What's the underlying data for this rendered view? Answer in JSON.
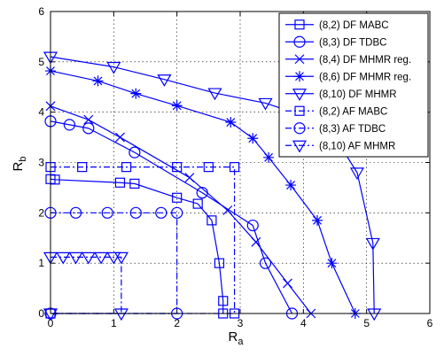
{
  "chart_data": {
    "type": "line",
    "title": "",
    "xlabel": "R",
    "xlabel_sub": "a",
    "ylabel": "R",
    "ylabel_sub": "b",
    "xlim": [
      0,
      6
    ],
    "ylim": [
      0,
      6
    ],
    "xticks": [
      0,
      1,
      2,
      3,
      4,
      5,
      6
    ],
    "yticks": [
      0,
      1,
      2,
      3,
      4,
      5,
      6
    ],
    "grid": "on",
    "legend_position": "top-right",
    "series": [
      {
        "name": "(8,2) DF MABC",
        "color": "#0000ff",
        "dash": "solid",
        "marker": "square",
        "points": [
          [
            0,
            2.67
          ],
          [
            0.07,
            2.66
          ],
          [
            1.1,
            2.6
          ],
          [
            1.33,
            2.58
          ],
          [
            2.0,
            2.3
          ],
          [
            2.33,
            2.18
          ],
          [
            2.55,
            1.85
          ],
          [
            2.67,
            1.0
          ],
          [
            2.73,
            0.25
          ],
          [
            2.73,
            0
          ]
        ]
      },
      {
        "name": "(8,3) DF TDBC",
        "color": "#0000ff",
        "dash": "solid",
        "marker": "circle",
        "points": [
          [
            0,
            3.82
          ],
          [
            0.3,
            3.75
          ],
          [
            0.6,
            3.68
          ],
          [
            1.33,
            3.2
          ],
          [
            2.4,
            2.4
          ],
          [
            3.2,
            1.75
          ],
          [
            3.4,
            1.0
          ],
          [
            3.82,
            0
          ]
        ]
      },
      {
        "name": "(8,4) DF MHMR reg.",
        "color": "#0000ff",
        "dash": "solid",
        "marker": "x",
        "points": [
          [
            0,
            4.12
          ],
          [
            0.6,
            3.85
          ],
          [
            1.1,
            3.5
          ],
          [
            2.2,
            2.7
          ],
          [
            2.8,
            2.05
          ],
          [
            3.25,
            1.42
          ],
          [
            3.75,
            0.6
          ],
          [
            4.12,
            0
          ]
        ]
      },
      {
        "name": "(8,6) DF MHMR reg.",
        "color": "#0000ff",
        "dash": "solid",
        "marker": "star",
        "points": [
          [
            0,
            4.82
          ],
          [
            0.75,
            4.62
          ],
          [
            1.35,
            4.37
          ],
          [
            2.0,
            4.13
          ],
          [
            2.85,
            3.8
          ],
          [
            3.2,
            3.48
          ],
          [
            3.45,
            3.1
          ],
          [
            3.8,
            2.55
          ],
          [
            4.22,
            1.85
          ],
          [
            4.45,
            1.0
          ],
          [
            4.82,
            0
          ]
        ]
      },
      {
        "name": "(8,10) DF MHMR",
        "color": "#0000ff",
        "dash": "solid",
        "marker": "triangle-down",
        "points": [
          [
            0,
            5.1
          ],
          [
            1.0,
            4.9
          ],
          [
            1.8,
            4.65
          ],
          [
            2.6,
            4.38
          ],
          [
            3.4,
            4.18
          ],
          [
            3.9,
            3.97
          ],
          [
            4.4,
            3.7
          ],
          [
            4.85,
            2.8
          ],
          [
            5.1,
            1.4
          ],
          [
            5.12,
            0
          ]
        ]
      },
      {
        "name": "(8,2) AF MABC",
        "color": "#0000ff",
        "dash": "dashdot",
        "marker": "square",
        "points": [
          [
            0,
            2.91
          ],
          [
            0.5,
            2.91
          ],
          [
            1.2,
            2.91
          ],
          [
            2.0,
            2.91
          ],
          [
            2.5,
            2.91
          ],
          [
            2.91,
            2.91
          ],
          [
            2.91,
            0
          ],
          [
            0,
            0
          ]
        ]
      },
      {
        "name": "(8,3) AF TDBC",
        "color": "#0000ff",
        "dash": "dashdot",
        "marker": "circle",
        "points": [
          [
            0,
            2.0
          ],
          [
            0.4,
            2.0
          ],
          [
            0.9,
            2.0
          ],
          [
            1.35,
            2.0
          ],
          [
            1.75,
            2.0
          ],
          [
            2.0,
            2.0
          ],
          [
            2.0,
            0
          ],
          [
            0,
            0
          ]
        ]
      },
      {
        "name": "(8,10) AF MHMR",
        "color": "#0000ff",
        "dash": "dashdot",
        "marker": "triangle-down",
        "points": [
          [
            0,
            1.12
          ],
          [
            0.2,
            1.12
          ],
          [
            0.4,
            1.12
          ],
          [
            0.6,
            1.12
          ],
          [
            0.8,
            1.12
          ],
          [
            1.0,
            1.12
          ],
          [
            1.12,
            1.12
          ],
          [
            1.12,
            0
          ],
          [
            0,
            0
          ]
        ]
      }
    ]
  }
}
